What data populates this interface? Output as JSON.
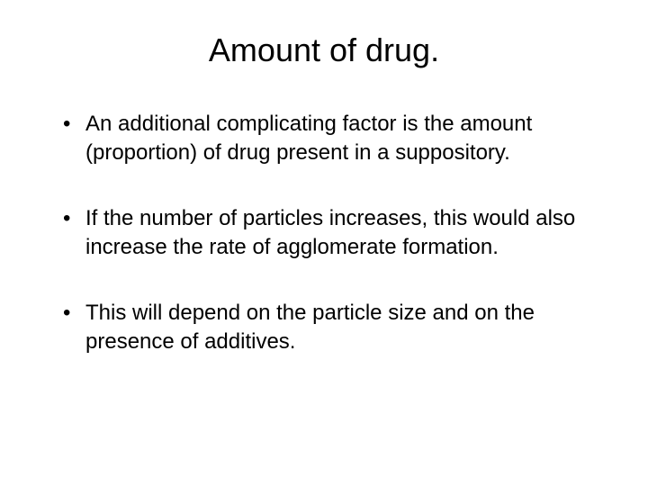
{
  "slide": {
    "title": "Amount of drug.",
    "title_fontsize": 36,
    "title_color": "#000000",
    "background_color": "#ffffff",
    "body_fontsize": 24,
    "body_color": "#000000",
    "bullets": [
      "An additional complicating factor  is the amount (proportion) of drug present in a suppository.",
      "If the number of particles increases, this would also increase the rate of agglomerate formation.",
      "This will depend on the particle size and on the presence of additives."
    ]
  }
}
